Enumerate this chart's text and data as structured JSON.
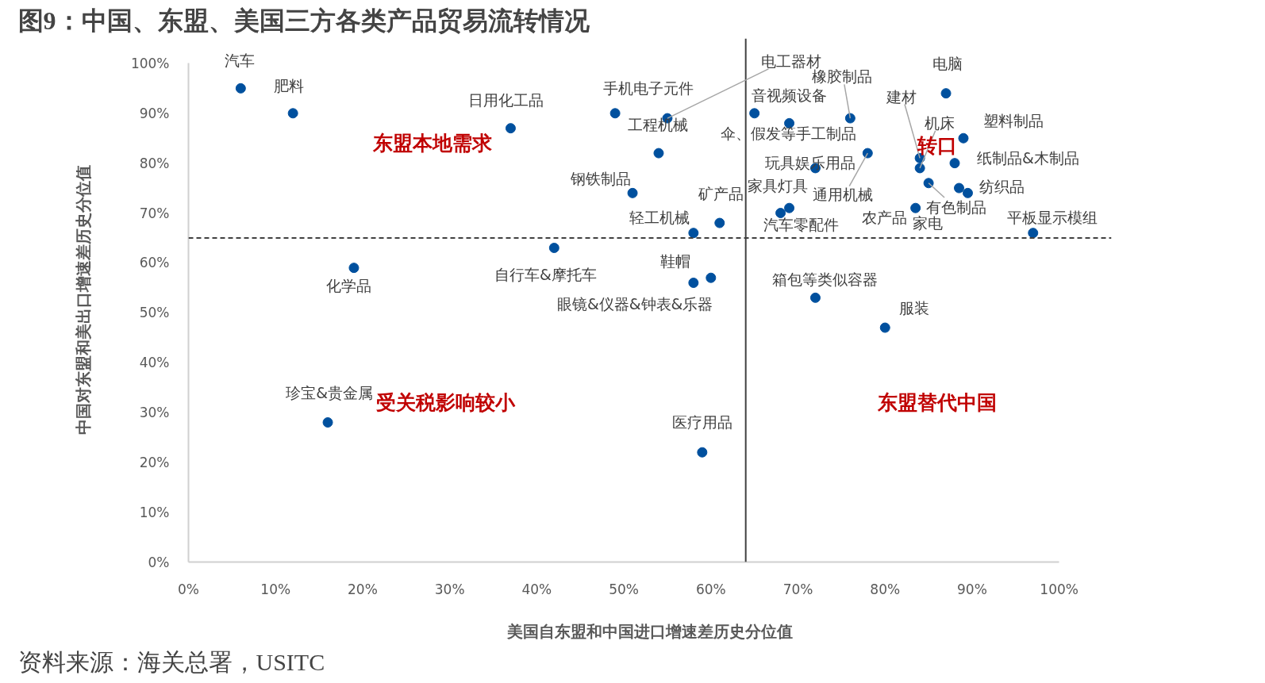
{
  "chart_data": {
    "type": "scatter",
    "title": "图9：中国、东盟、美国三方各类产品贸易流转情况",
    "xlabel": "美国自东盟和中国进口增速差历史分位值",
    "ylabel": "中国对东盟和美出口增速差历史分位值",
    "xlim": [
      0,
      100
    ],
    "ylim": [
      0,
      100
    ],
    "xticks": [
      {
        "value": 0,
        "label": "0%"
      },
      {
        "value": 10,
        "label": "10%"
      },
      {
        "value": 20,
        "label": "20%"
      },
      {
        "value": 30,
        "label": "30%"
      },
      {
        "value": 40,
        "label": "40%"
      },
      {
        "value": 50,
        "label": "50%"
      },
      {
        "value": 60,
        "label": "60%"
      },
      {
        "value": 70,
        "label": "70%"
      },
      {
        "value": 80,
        "label": "80%"
      },
      {
        "value": 90,
        "label": "90%"
      },
      {
        "value": 100,
        "label": "100%"
      }
    ],
    "yticks": [
      {
        "value": 0,
        "label": "0%"
      },
      {
        "value": 10,
        "label": "10%"
      },
      {
        "value": 20,
        "label": "20%"
      },
      {
        "value": 30,
        "label": "30%"
      },
      {
        "value": 40,
        "label": "40%"
      },
      {
        "value": 50,
        "label": "50%"
      },
      {
        "value": 60,
        "label": "60%"
      },
      {
        "value": 70,
        "label": "70%"
      },
      {
        "value": 80,
        "label": "80%"
      },
      {
        "value": 90,
        "label": "90%"
      },
      {
        "value": 100,
        "label": "100%"
      }
    ],
    "grid": false,
    "marker": "circle",
    "series": [
      {
        "color": "#00509e",
        "x": [
          6,
          12,
          37,
          19,
          49,
          55,
          54,
          51,
          58,
          61,
          42,
          58,
          60,
          65,
          69,
          76,
          72,
          69,
          68,
          72,
          80,
          59,
          16,
          87,
          78,
          89,
          84,
          84,
          88,
          85,
          88.5,
          89.5,
          83.5,
          97
        ],
        "values": [
          95,
          90,
          87,
          59,
          90,
          89,
          82,
          74,
          66,
          68,
          63,
          56,
          57,
          90,
          88,
          89,
          79,
          71,
          70,
          53,
          47,
          22,
          28,
          94,
          82,
          85,
          81,
          79,
          80,
          76,
          75,
          74,
          71,
          66
        ]
      }
    ],
    "ref_lines": [
      {
        "axis": "x",
        "value": 64,
        "color": "#404040",
        "line_style": "solid"
      },
      {
        "axis": "y",
        "value": 65,
        "color": "#404040",
        "line_style": "dashed"
      }
    ],
    "annotations": [
      {
        "text": "汽车",
        "x": 6,
        "y": 95
      },
      {
        "text": "肥料",
        "x": 12,
        "y": 90
      },
      {
        "text": "日用化工品",
        "x": 37,
        "y": 87
      },
      {
        "text": "化学品",
        "x": 19,
        "y": 59
      },
      {
        "text": "手机电子元件",
        "x": 49,
        "y": 90
      },
      {
        "text": "工程机械",
        "x": 54,
        "y": 82
      },
      {
        "text": "伞、假发等手工制品",
        "x": 69,
        "y": 88
      },
      {
        "text": "钢铁制品",
        "x": 51,
        "y": 74
      },
      {
        "text": "轻工机械",
        "x": 58,
        "y": 66
      },
      {
        "text": "矿产品",
        "x": 61,
        "y": 68
      },
      {
        "text": "自行车&摩托车",
        "x": 42,
        "y": 63
      },
      {
        "text": "眼镜&仪器&钟表&乐器",
        "x": 58,
        "y": 56
      },
      {
        "text": "鞋帽",
        "x": 60,
        "y": 57
      },
      {
        "text": "电工器材",
        "x": 55,
        "y": 89
      },
      {
        "text": "音视频设备",
        "x": 65,
        "y": 90
      },
      {
        "text": "橡胶制品",
        "x": 76,
        "y": 89
      },
      {
        "text": "玩具娱乐用品",
        "x": 72,
        "y": 79
      },
      {
        "text": "家具灯具",
        "x": 69,
        "y": 71
      },
      {
        "text": "汽车零配件",
        "x": 68,
        "y": 70
      },
      {
        "text": "箱包等类似容器",
        "x": 72,
        "y": 53
      },
      {
        "text": "服装",
        "x": 80,
        "y": 47
      },
      {
        "text": "医疗用品",
        "x": 59,
        "y": 22
      },
      {
        "text": "珍宝&贵金属",
        "x": 16,
        "y": 28
      },
      {
        "text": "电脑",
        "x": 87,
        "y": 94
      },
      {
        "text": "通用机械",
        "x": 78,
        "y": 82
      },
      {
        "text": "塑料制品",
        "x": 89,
        "y": 85
      },
      {
        "text": "建材",
        "x": 84,
        "y": 81
      },
      {
        "text": "机床",
        "x": 84,
        "y": 79
      },
      {
        "text": "纸制品&木制品",
        "x": 88,
        "y": 80
      },
      {
        "text": "有色制品",
        "x": 85,
        "y": 76
      },
      {
        "text": "纺织品",
        "x": 88.5,
        "y": 75
      },
      {
        "text": "家电",
        "x": 89.5,
        "y": 74
      },
      {
        "text": "农产品",
        "x": 83.5,
        "y": 71
      },
      {
        "text": "平板显示模组",
        "x": 97,
        "y": 66
      },
      "东盟本地需求",
      "受关税影响较小",
      "东盟替代中国",
      "转口",
      "资料来源：海关总署，USITC"
    ]
  }
}
